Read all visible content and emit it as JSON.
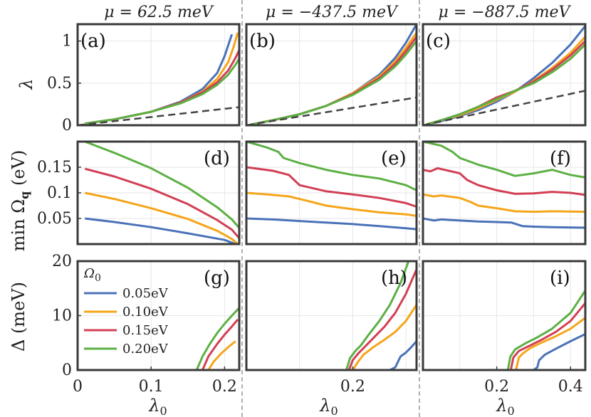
{
  "figure": {
    "ylabel_row1": "λ",
    "ylabel_row2": "min Ω",
    "ylabel_row2_sub": "q",
    "ylabel_row2_unit": " (eV)",
    "ylabel_row3": "Δ (meV)",
    "xlabel": "λ",
    "xlabel_sub": "0"
  },
  "colors": {
    "s1": "#4a72b8",
    "s2": "#f5a51a",
    "s3": "#d23f54",
    "s4": "#5cb044",
    "dash": "#444444"
  },
  "legend": {
    "title": "Ω",
    "title_sub": "0",
    "entries": [
      "0.05eV",
      "0.10eV",
      "0.15eV",
      "0.20eV"
    ]
  },
  "chart_data": [
    {
      "id": "a",
      "type": "line",
      "label": "(a)",
      "title": "μ = 62.5 meV",
      "xlim": [
        0,
        0.22
      ],
      "ylim": [
        0,
        1.2
      ],
      "xticks": [],
      "xticklabels": [],
      "yticks": [
        0,
        0.5,
        1
      ],
      "yticklabels": [
        "0",
        "0.5",
        "1"
      ],
      "series": [
        {
          "name": "0.05eV",
          "x": [
            0.01,
            0.05,
            0.1,
            0.14,
            0.17,
            0.19,
            0.2,
            0.205,
            0.21
          ],
          "y": [
            0.02,
            0.07,
            0.16,
            0.28,
            0.43,
            0.62,
            0.82,
            0.95,
            1.08
          ]
        },
        {
          "name": "0.10eV",
          "x": [
            0.01,
            0.05,
            0.1,
            0.14,
            0.17,
            0.19,
            0.205,
            0.212,
            0.218
          ],
          "y": [
            0.02,
            0.07,
            0.16,
            0.27,
            0.4,
            0.55,
            0.75,
            0.92,
            1.1
          ]
        },
        {
          "name": "0.15eV",
          "x": [
            0.01,
            0.05,
            0.1,
            0.14,
            0.17,
            0.19,
            0.205,
            0.215,
            0.222
          ],
          "y": [
            0.02,
            0.07,
            0.16,
            0.27,
            0.39,
            0.51,
            0.65,
            0.8,
            0.93
          ]
        },
        {
          "name": "0.20eV",
          "x": [
            0.01,
            0.05,
            0.1,
            0.14,
            0.17,
            0.19,
            0.205,
            0.215,
            0.222
          ],
          "y": [
            0.02,
            0.07,
            0.16,
            0.26,
            0.37,
            0.48,
            0.6,
            0.72,
            0.82
          ]
        },
        {
          "name": "reference",
          "dashed": true,
          "x": [
            0,
            0.225
          ],
          "y": [
            0,
            0.22
          ]
        }
      ]
    },
    {
      "id": "b",
      "type": "line",
      "label": "(b)",
      "title": "μ = −437.5 meV",
      "xlim": [
        0,
        0.32
      ],
      "ylim": [
        0,
        1.2
      ],
      "xticks": [],
      "xticklabels": [],
      "yticks": [],
      "yticklabels": [],
      "series": [
        {
          "name": "0.05eV",
          "x": [
            0.01,
            0.05,
            0.1,
            0.15,
            0.2,
            0.25,
            0.28,
            0.3,
            0.32
          ],
          "y": [
            0.01,
            0.06,
            0.13,
            0.23,
            0.38,
            0.6,
            0.8,
            0.98,
            1.2
          ]
        },
        {
          "name": "0.10eV",
          "x": [
            0.01,
            0.05,
            0.1,
            0.15,
            0.2,
            0.25,
            0.28,
            0.3,
            0.32
          ],
          "y": [
            0.01,
            0.06,
            0.13,
            0.23,
            0.38,
            0.58,
            0.76,
            0.92,
            1.1
          ]
        },
        {
          "name": "0.15eV",
          "x": [
            0.01,
            0.05,
            0.1,
            0.15,
            0.2,
            0.25,
            0.28,
            0.3,
            0.32
          ],
          "y": [
            0.01,
            0.06,
            0.13,
            0.23,
            0.37,
            0.56,
            0.73,
            0.88,
            1.05
          ]
        },
        {
          "name": "0.20eV",
          "x": [
            0.01,
            0.05,
            0.1,
            0.15,
            0.2,
            0.25,
            0.28,
            0.3,
            0.32
          ],
          "y": [
            0.01,
            0.06,
            0.13,
            0.23,
            0.36,
            0.54,
            0.7,
            0.84,
            1.0
          ]
        },
        {
          "name": "reference",
          "dashed": true,
          "x": [
            0,
            0.32
          ],
          "y": [
            0,
            0.33
          ]
        }
      ]
    },
    {
      "id": "c",
      "type": "line",
      "label": "(c)",
      "title": "μ = −887.5 meV",
      "xlim": [
        0,
        0.44
      ],
      "ylim": [
        0,
        1.2
      ],
      "xticks": [],
      "xticklabels": [],
      "yticks": [],
      "yticklabels": [],
      "series": [
        {
          "name": "0.05eV",
          "x": [
            0.01,
            0.05,
            0.1,
            0.15,
            0.2,
            0.25,
            0.3,
            0.35,
            0.4,
            0.44
          ],
          "y": [
            0.01,
            0.05,
            0.11,
            0.18,
            0.28,
            0.4,
            0.56,
            0.74,
            0.96,
            1.18
          ]
        },
        {
          "name": "0.10eV",
          "x": [
            0.01,
            0.05,
            0.1,
            0.15,
            0.2,
            0.25,
            0.3,
            0.35,
            0.4,
            0.44
          ],
          "y": [
            0.01,
            0.06,
            0.12,
            0.2,
            0.3,
            0.4,
            0.53,
            0.68,
            0.86,
            1.05
          ]
        },
        {
          "name": "0.15eV",
          "x": [
            0.01,
            0.05,
            0.1,
            0.15,
            0.2,
            0.25,
            0.3,
            0.35,
            0.4,
            0.44
          ],
          "y": [
            0.01,
            0.06,
            0.13,
            0.22,
            0.33,
            0.41,
            0.52,
            0.66,
            0.83,
            1.0
          ]
        },
        {
          "name": "0.20eV",
          "x": [
            0.01,
            0.05,
            0.1,
            0.15,
            0.2,
            0.25,
            0.3,
            0.35,
            0.4,
            0.44
          ],
          "y": [
            0.01,
            0.06,
            0.13,
            0.22,
            0.31,
            0.41,
            0.5,
            0.63,
            0.79,
            0.96
          ]
        },
        {
          "name": "reference",
          "dashed": true,
          "x": [
            0,
            0.44
          ],
          "y": [
            0,
            0.41
          ]
        }
      ]
    },
    {
      "id": "d",
      "type": "line",
      "label": "(d)",
      "xlim": [
        0,
        0.22
      ],
      "ylim": [
        0,
        0.2
      ],
      "xticks": [],
      "xticklabels": [],
      "yticks": [
        0.05,
        0.1,
        0.15
      ],
      "yticklabels": [
        "0.05",
        "0.1",
        "0.15"
      ],
      "series": [
        {
          "name": "0.05eV",
          "x": [
            0.01,
            0.05,
            0.1,
            0.15,
            0.2,
            0.215
          ],
          "y": [
            0.05,
            0.043,
            0.033,
            0.021,
            0.008,
            0.0
          ]
        },
        {
          "name": "0.10eV",
          "x": [
            0.01,
            0.05,
            0.1,
            0.15,
            0.19,
            0.21,
            0.218
          ],
          "y": [
            0.1,
            0.088,
            0.07,
            0.049,
            0.026,
            0.01,
            0.0
          ]
        },
        {
          "name": "0.15eV",
          "x": [
            0.01,
            0.05,
            0.1,
            0.15,
            0.19,
            0.21,
            0.222
          ],
          "y": [
            0.147,
            0.132,
            0.108,
            0.078,
            0.047,
            0.028,
            0.008
          ]
        },
        {
          "name": "0.20eV",
          "x": [
            0.01,
            0.05,
            0.1,
            0.15,
            0.19,
            0.21,
            0.222
          ],
          "y": [
            0.2,
            0.178,
            0.148,
            0.11,
            0.072,
            0.048,
            0.028
          ]
        }
      ]
    },
    {
      "id": "e",
      "type": "line",
      "label": "(e)",
      "xlim": [
        0,
        0.32
      ],
      "ylim": [
        0,
        0.2
      ],
      "xticks": [],
      "xticklabels": [],
      "yticks": [],
      "yticklabels": [],
      "series": [
        {
          "name": "0.05eV",
          "x": [
            0.0,
            0.05,
            0.1,
            0.15,
            0.2,
            0.25,
            0.3,
            0.32
          ],
          "y": [
            0.05,
            0.048,
            0.045,
            0.042,
            0.039,
            0.035,
            0.031,
            0.029
          ]
        },
        {
          "name": "0.10eV",
          "x": [
            0.0,
            0.05,
            0.08,
            0.1,
            0.12,
            0.15,
            0.2,
            0.25,
            0.3,
            0.32
          ],
          "y": [
            0.1,
            0.096,
            0.093,
            0.088,
            0.083,
            0.075,
            0.068,
            0.062,
            0.058,
            0.055
          ]
        },
        {
          "name": "0.15eV",
          "x": [
            0.0,
            0.05,
            0.08,
            0.09,
            0.1,
            0.15,
            0.2,
            0.25,
            0.3,
            0.32
          ],
          "y": [
            0.15,
            0.143,
            0.135,
            0.125,
            0.115,
            0.103,
            0.097,
            0.09,
            0.08,
            0.073
          ]
        },
        {
          "name": "0.20eV",
          "x": [
            0.0,
            0.04,
            0.06,
            0.07,
            0.1,
            0.15,
            0.2,
            0.25,
            0.3,
            0.32
          ],
          "y": [
            0.2,
            0.188,
            0.18,
            0.168,
            0.158,
            0.145,
            0.135,
            0.128,
            0.115,
            0.105
          ]
        }
      ]
    },
    {
      "id": "f",
      "type": "line",
      "label": "(f)",
      "xlim": [
        0,
        0.44
      ],
      "ylim": [
        0,
        0.2
      ],
      "xticks": [],
      "xticklabels": [],
      "yticks": [],
      "yticklabels": [],
      "series": [
        {
          "name": "0.05eV",
          "x": [
            0.0,
            0.03,
            0.05,
            0.1,
            0.15,
            0.2,
            0.24,
            0.27,
            0.3,
            0.35,
            0.44
          ],
          "y": [
            0.05,
            0.046,
            0.048,
            0.046,
            0.044,
            0.043,
            0.042,
            0.035,
            0.034,
            0.033,
            0.032
          ]
        },
        {
          "name": "0.10eV",
          "x": [
            0.0,
            0.03,
            0.05,
            0.1,
            0.13,
            0.15,
            0.2,
            0.25,
            0.3,
            0.35,
            0.44
          ],
          "y": [
            0.097,
            0.093,
            0.095,
            0.09,
            0.082,
            0.075,
            0.07,
            0.064,
            0.063,
            0.064,
            0.063
          ]
        },
        {
          "name": "0.15eV",
          "x": [
            0.0,
            0.02,
            0.04,
            0.1,
            0.12,
            0.15,
            0.2,
            0.25,
            0.3,
            0.35,
            0.4,
            0.44
          ],
          "y": [
            0.145,
            0.142,
            0.148,
            0.138,
            0.125,
            0.115,
            0.105,
            0.098,
            0.099,
            0.102,
            0.1,
            0.096
          ]
        },
        {
          "name": "0.20eV",
          "x": [
            0.0,
            0.05,
            0.08,
            0.1,
            0.15,
            0.2,
            0.25,
            0.3,
            0.35,
            0.4,
            0.44
          ],
          "y": [
            0.2,
            0.192,
            0.18,
            0.168,
            0.155,
            0.145,
            0.133,
            0.138,
            0.145,
            0.135,
            0.13
          ]
        }
      ]
    },
    {
      "id": "g",
      "type": "line",
      "label": "(g)",
      "xlim": [
        0,
        0.22
      ],
      "ylim": [
        0,
        20
      ],
      "xticks": [
        0,
        0.1,
        0.2
      ],
      "xticklabels": [
        "0",
        "0.1",
        "0.2"
      ],
      "yticks": [
        0,
        10,
        20
      ],
      "yticklabels": [
        "0",
        "10",
        "20"
      ],
      "series": [
        {
          "name": "0.05eV",
          "x": [
            0.0,
            0.2,
            0.205,
            0.21,
            0.22
          ],
          "y": [
            0,
            0,
            0,
            0,
            0
          ]
        },
        {
          "name": "0.10eV",
          "x": [
            0.0,
            0.178,
            0.185,
            0.195,
            0.205,
            0.215
          ],
          "y": [
            0,
            0,
            1.5,
            3.0,
            4.2,
            5.3
          ]
        },
        {
          "name": "0.15eV",
          "x": [
            0.0,
            0.17,
            0.178,
            0.19,
            0.2,
            0.21,
            0.218
          ],
          "y": [
            0,
            0,
            2.5,
            4.8,
            6.5,
            8.0,
            9.3
          ]
        },
        {
          "name": "0.20eV",
          "x": [
            0.0,
            0.162,
            0.17,
            0.18,
            0.19,
            0.2,
            0.21,
            0.222
          ],
          "y": [
            0,
            0,
            2.5,
            4.8,
            6.8,
            8.5,
            10.0,
            11.7
          ]
        }
      ]
    },
    {
      "id": "h",
      "type": "line",
      "label": "(h)",
      "xlim": [
        0,
        0.32
      ],
      "ylim": [
        0,
        20
      ],
      "xticks": [
        0.2
      ],
      "xticklabels": [
        "0.2"
      ],
      "yticks": [],
      "yticklabels": [],
      "series": [
        {
          "name": "0.05eV",
          "x": [
            0.0,
            0.27,
            0.28,
            0.29,
            0.3,
            0.31,
            0.32
          ],
          "y": [
            0,
            0,
            0.5,
            2.5,
            3.2,
            4.2,
            5.3
          ]
        },
        {
          "name": "0.10eV",
          "x": [
            0.0,
            0.2,
            0.21,
            0.22,
            0.24,
            0.26,
            0.28,
            0.3,
            0.32
          ],
          "y": [
            0,
            0,
            1.5,
            2.8,
            4.3,
            5.6,
            7.0,
            9.0,
            12.0
          ]
        },
        {
          "name": "0.15eV",
          "x": [
            0.0,
            0.193,
            0.2,
            0.21,
            0.22,
            0.24,
            0.26,
            0.28,
            0.3,
            0.32
          ],
          "y": [
            0,
            0,
            1.8,
            3.0,
            4.0,
            6.0,
            8.0,
            10.5,
            14.0,
            18.5
          ]
        },
        {
          "name": "0.20eV",
          "x": [
            0.0,
            0.188,
            0.195,
            0.205,
            0.215,
            0.23,
            0.25,
            0.27,
            0.29,
            0.305
          ],
          "y": [
            0,
            0,
            2.2,
            3.5,
            4.5,
            6.5,
            9.0,
            12.0,
            16.0,
            20.0
          ]
        }
      ]
    },
    {
      "id": "i",
      "type": "line",
      "label": "(i)",
      "xlim": [
        0,
        0.44
      ],
      "ylim": [
        0,
        20
      ],
      "xticks": [
        0.2,
        0.4
      ],
      "xticklabels": [
        "0.2",
        "0.4"
      ],
      "yticks": [],
      "yticklabels": [],
      "series": [
        {
          "name": "0.05eV",
          "x": [
            0.0,
            0.3,
            0.31,
            0.315,
            0.33,
            0.36,
            0.4,
            0.44
          ],
          "y": [
            0,
            0,
            0.5,
            1.8,
            2.8,
            3.9,
            5.3,
            6.6
          ]
        },
        {
          "name": "0.10eV",
          "x": [
            0.0,
            0.252,
            0.26,
            0.27,
            0.29,
            0.32,
            0.36,
            0.4,
            0.44
          ],
          "y": [
            0,
            0,
            2.3,
            3.0,
            4.0,
            5.0,
            6.2,
            7.6,
            9.6
          ]
        },
        {
          "name": "0.15eV",
          "x": [
            0.0,
            0.238,
            0.245,
            0.26,
            0.29,
            0.32,
            0.36,
            0.4,
            0.44
          ],
          "y": [
            0,
            0,
            2.3,
            3.5,
            4.5,
            5.5,
            7.0,
            9.0,
            12.3
          ]
        },
        {
          "name": "0.20eV",
          "x": [
            0.0,
            0.23,
            0.237,
            0.25,
            0.28,
            0.31,
            0.35,
            0.4,
            0.44
          ],
          "y": [
            0,
            0,
            2.5,
            3.8,
            5.0,
            6.0,
            7.6,
            10.5,
            14.6
          ]
        }
      ]
    }
  ]
}
